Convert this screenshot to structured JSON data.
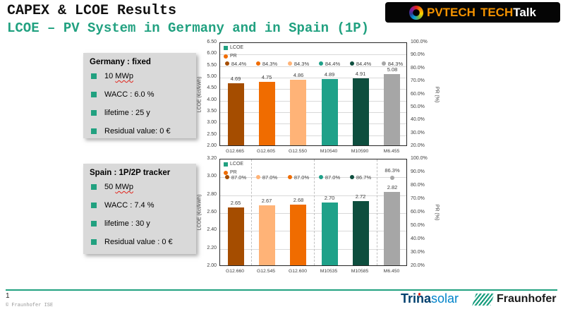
{
  "slide": {
    "title": "CAPEX & LCOE Results",
    "subtitle": "LCOE – PV System in Germany and in Spain (1P)",
    "page_number": "1",
    "copyright": "© Fraunhofer ISE"
  },
  "logos": {
    "pvtech": {
      "word1": "PVTECH",
      "word2_orange": "TECH",
      "word2_white": "Talk"
    },
    "trina": {
      "bold_part": "Trina",
      "light_part": "solar"
    },
    "fraunhofer": {
      "label": "Fraunhofer"
    }
  },
  "param_boxes": [
    {
      "title": "Germany : fixed",
      "bullets": [
        {
          "pre": "10 ",
          "squiggle": "MWp"
        },
        {
          "pre": "WACC : 6.0 %",
          "squiggle": ""
        },
        {
          "pre": "lifetime : 25 y",
          "squiggle": ""
        },
        {
          "pre": "Residual value: 0 €",
          "squiggle": ""
        }
      ]
    },
    {
      "title": "Spain : 1P/2P tracker",
      "bullets": [
        {
          "pre": "50 ",
          "squiggle": "MWp"
        },
        {
          "pre": "WACC : 7.4 %",
          "squiggle": ""
        },
        {
          "pre": "lifetime : 30 y",
          "squiggle": ""
        },
        {
          "pre": "Residual value : 0 €",
          "squiggle": ""
        }
      ]
    }
  ],
  "colors": {
    "accent_teal": "#21a180",
    "lcoe_legend_marker": "#21a180",
    "pr_legend_marker": "#f06c00",
    "grid_line": "#d9d9d9",
    "plot_border": "#262626",
    "separator_dash": "#bfbfbf",
    "box_bg": "#d9d9d9"
  },
  "chart_data": [
    {
      "type": "bar",
      "location": "Germany",
      "legend": [
        "LCOE",
        "PR"
      ],
      "legend_position": "top-left-inside",
      "grid": true,
      "ylabel": "LCOE (€ct/kWh)",
      "y2label": "PR (%)",
      "ylim": [
        2.0,
        6.5
      ],
      "y2lim": [
        20,
        100
      ],
      "yticks": [
        "6.50",
        "6.00",
        "5.50",
        "5.00",
        "4.50",
        "4.00",
        "3.50",
        "3.00",
        "2.50",
        "2.00"
      ],
      "y2ticks": [
        "100.0%",
        "90.0%",
        "80.0%",
        "70.0%",
        "60.0%",
        "50.0%",
        "40.0%",
        "30.0%",
        "20.0%"
      ],
      "categories": [
        "G12.665",
        "G12.605",
        "G12.550",
        "M10540",
        "M10590",
        "M6.455"
      ],
      "series": [
        {
          "name": "LCOE",
          "values": [
            4.69,
            4.75,
            4.86,
            4.89,
            4.91,
            5.08
          ],
          "labels": [
            "4.69",
            "4.75",
            "4.86",
            "4.89",
            "4.91",
            "5.08"
          ]
        },
        {
          "name": "PR",
          "values": [
            84.4,
            84.3,
            84.3,
            84.4,
            84.4,
            84.3
          ],
          "labels": [
            "84.4%",
            "84.3%",
            "84.3%",
            "84.4%",
            "84.4%",
            "84.3%"
          ]
        }
      ],
      "bar_colors": [
        "#a54d00",
        "#f06c00",
        "#ffb377",
        "#1fa189",
        "#0e4e3e",
        "#a6a6a6"
      ],
      "group_separators_after": [],
      "last_pr_label_above": false
    },
    {
      "type": "bar",
      "location": "Spain",
      "legend": [
        "LCOE",
        "PR"
      ],
      "legend_position": "top-left-inside",
      "grid": true,
      "ylabel": "LCOE (€ct/kWh)",
      "y2label": "PR (%)",
      "ylim": [
        2.0,
        3.2
      ],
      "y2lim": [
        20,
        100
      ],
      "yticks": [
        "3.20",
        "3.00",
        "2.80",
        "2.60",
        "2.40",
        "2.20",
        "2.00"
      ],
      "y2ticks": [
        "100.0%",
        "90.0%",
        "80.0%",
        "70.0%",
        "60.0%",
        "50.0%",
        "40.0%",
        "30.0%",
        "20.0%"
      ],
      "categories": [
        "G12.660",
        "G12.545",
        "G12.600",
        "M10535",
        "M10585",
        "M6.450"
      ],
      "series": [
        {
          "name": "LCOE",
          "values": [
            2.65,
            2.67,
            2.68,
            2.7,
            2.72,
            2.82
          ],
          "labels": [
            "2.65",
            "2.67",
            "2.68",
            "2.70",
            "2.72",
            "2.82"
          ]
        },
        {
          "name": "PR",
          "values": [
            87.0,
            87.0,
            87.0,
            87.0,
            86.7,
            86.3
          ],
          "labels": [
            "87.0%",
            "87.0%",
            "87.0%",
            "87.0%",
            "86.7%",
            "86.3%"
          ]
        }
      ],
      "bar_colors": [
        "#a54d00",
        "#ffb377",
        "#f06c00",
        "#1fa189",
        "#0e4e3e",
        "#a6a6a6"
      ],
      "group_separators_after": [
        0,
        2,
        4
      ],
      "last_pr_label_above": true
    }
  ]
}
